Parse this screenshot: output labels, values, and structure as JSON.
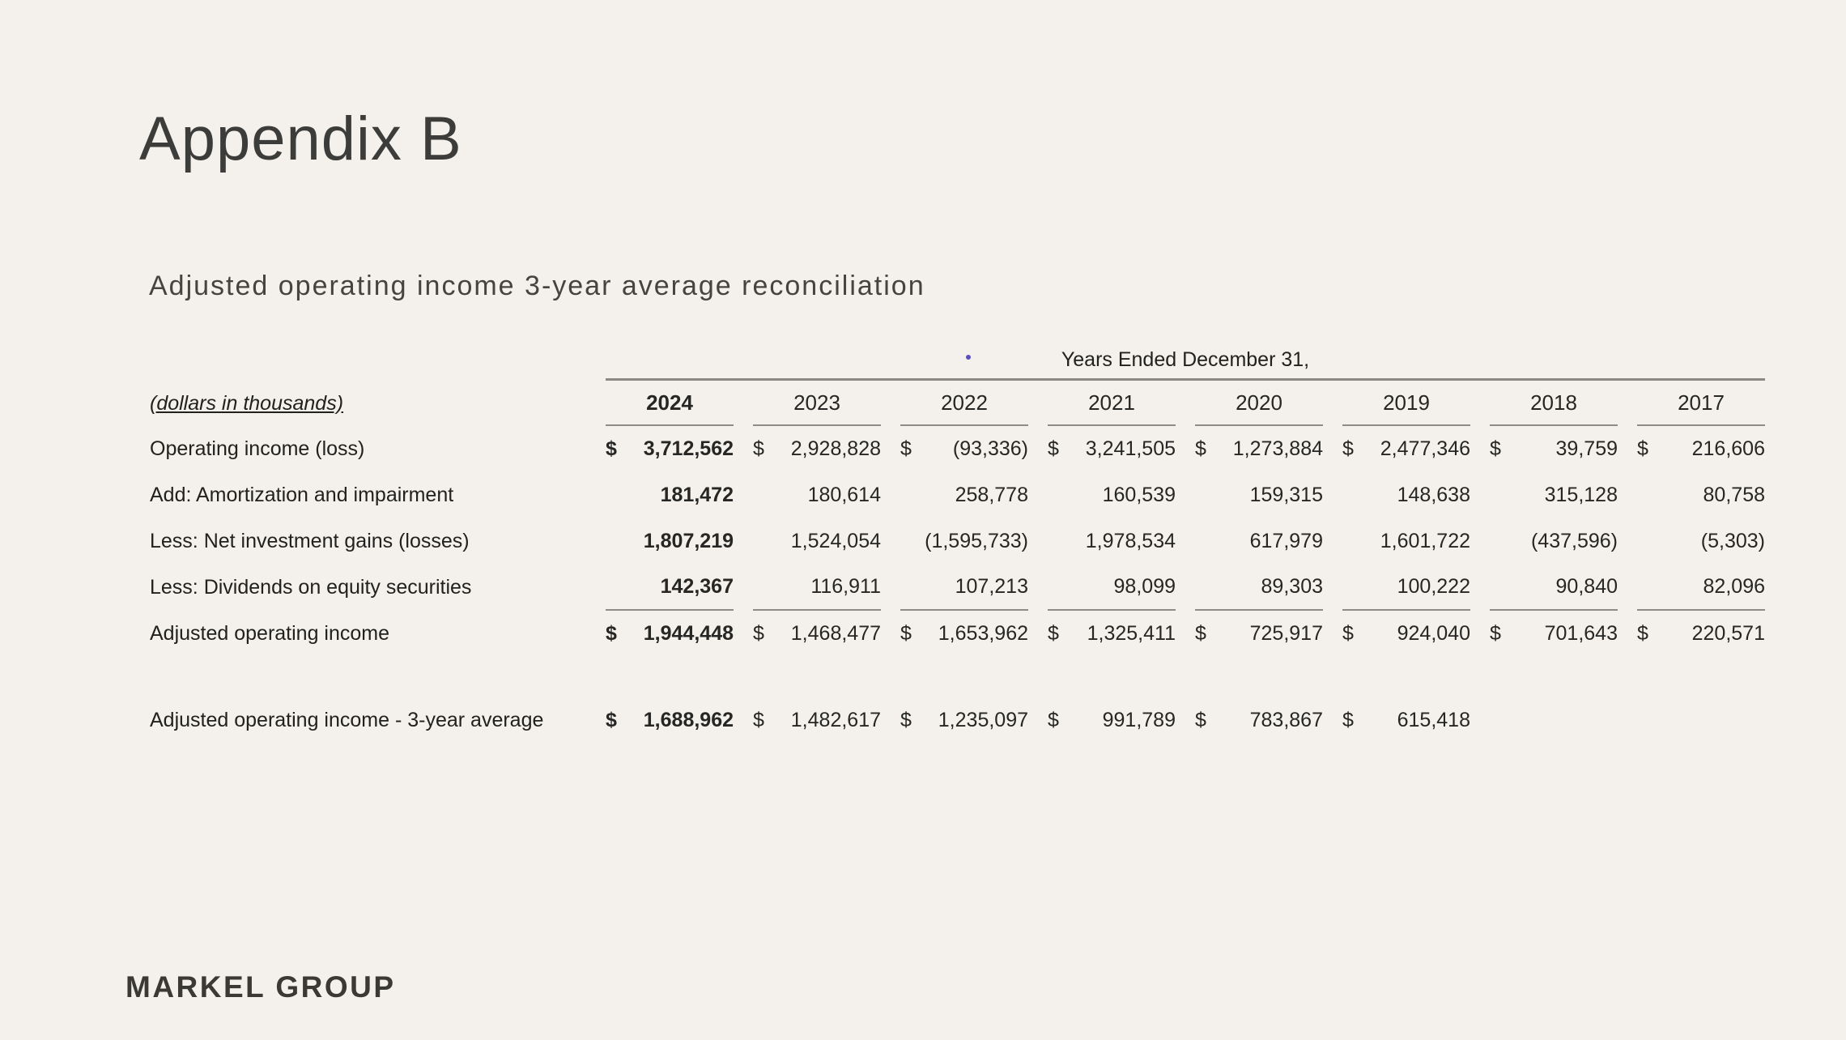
{
  "page": {
    "title": "Appendix B",
    "subtitle": "Adjusted operating income 3-year average reconciliation",
    "logo": "MARKEL GROUP",
    "colors": {
      "background": "#f4f1ec",
      "text": "#2e2e2c",
      "rule_gray": "#8d8c86",
      "artifact_dot": "#5a4fbe"
    }
  },
  "table": {
    "currency": "$",
    "spanner": "Years Ended December 31,",
    "note": "(dollars in thousands)",
    "years": [
      "2024",
      "2023",
      "2022",
      "2021",
      "2020",
      "2019",
      "2018",
      "2017"
    ],
    "rows": [
      {
        "label": "Operating income (loss)",
        "dollar": true,
        "values": [
          "3,712,562",
          "2,928,828",
          "(93,336)",
          "3,241,505",
          "1,273,884",
          "2,477,346",
          "39,759",
          "216,606"
        ]
      },
      {
        "label": "Add: Amortization and impairment",
        "dollar": false,
        "values": [
          "181,472",
          "180,614",
          "258,778",
          "160,539",
          "159,315",
          "148,638",
          "315,128",
          "80,758"
        ]
      },
      {
        "label": "Less: Net investment gains (losses)",
        "dollar": false,
        "values": [
          "1,807,219",
          "1,524,054",
          "(1,595,733)",
          "1,978,534",
          "617,979",
          "1,601,722",
          "(437,596)",
          "(5,303)"
        ]
      },
      {
        "label": "Less: Dividends on equity securities",
        "dollar": false,
        "values": [
          "142,367",
          "116,911",
          "107,213",
          "98,099",
          "89,303",
          "100,222",
          "90,840",
          "82,096"
        ]
      },
      {
        "label": "Adjusted operating income",
        "dollar": true,
        "values": [
          "1,944,448",
          "1,468,477",
          "1,653,962",
          "1,325,411",
          "725,917",
          "924,040",
          "701,643",
          "220,571"
        ]
      }
    ],
    "average_row": {
      "label": "Adjusted operating income - 3-year average",
      "dollar": true,
      "values": [
        "1,688,962",
        "1,482,617",
        "1,235,097",
        "991,789",
        "783,867",
        "615,418"
      ]
    }
  }
}
